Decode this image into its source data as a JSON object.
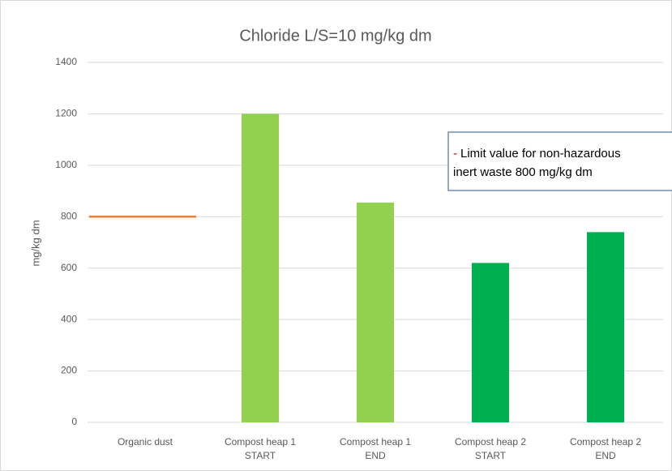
{
  "chart_data": {
    "type": "bar",
    "title": "Chloride L/S=10 mg/kg dm",
    "ylabel": "mg/kg dm",
    "categories": [
      [
        "Organic dust"
      ],
      [
        "Compost heap 1",
        "START"
      ],
      [
        "Compost heap 1",
        "END"
      ],
      [
        "Compost heap 2",
        "START"
      ],
      [
        "Compost heap 2",
        "END"
      ]
    ],
    "values": [
      null,
      1200,
      855,
      620,
      740
    ],
    "colors": [
      "#92d050",
      "#92d050",
      "#92d050",
      "#00b050",
      "#00b050"
    ],
    "ylim": [
      0,
      1400
    ],
    "yticks": [
      0,
      200,
      400,
      600,
      800,
      1000,
      1200,
      1400
    ],
    "grid": true,
    "limit_line": {
      "value": 800,
      "color": "#ed7d31"
    },
    "annotation": {
      "marker": "-",
      "marker_color": "#c00000",
      "lines": [
        "Limit value for non-hazardous",
        "inert waste 800 mg/kg dm"
      ]
    }
  }
}
